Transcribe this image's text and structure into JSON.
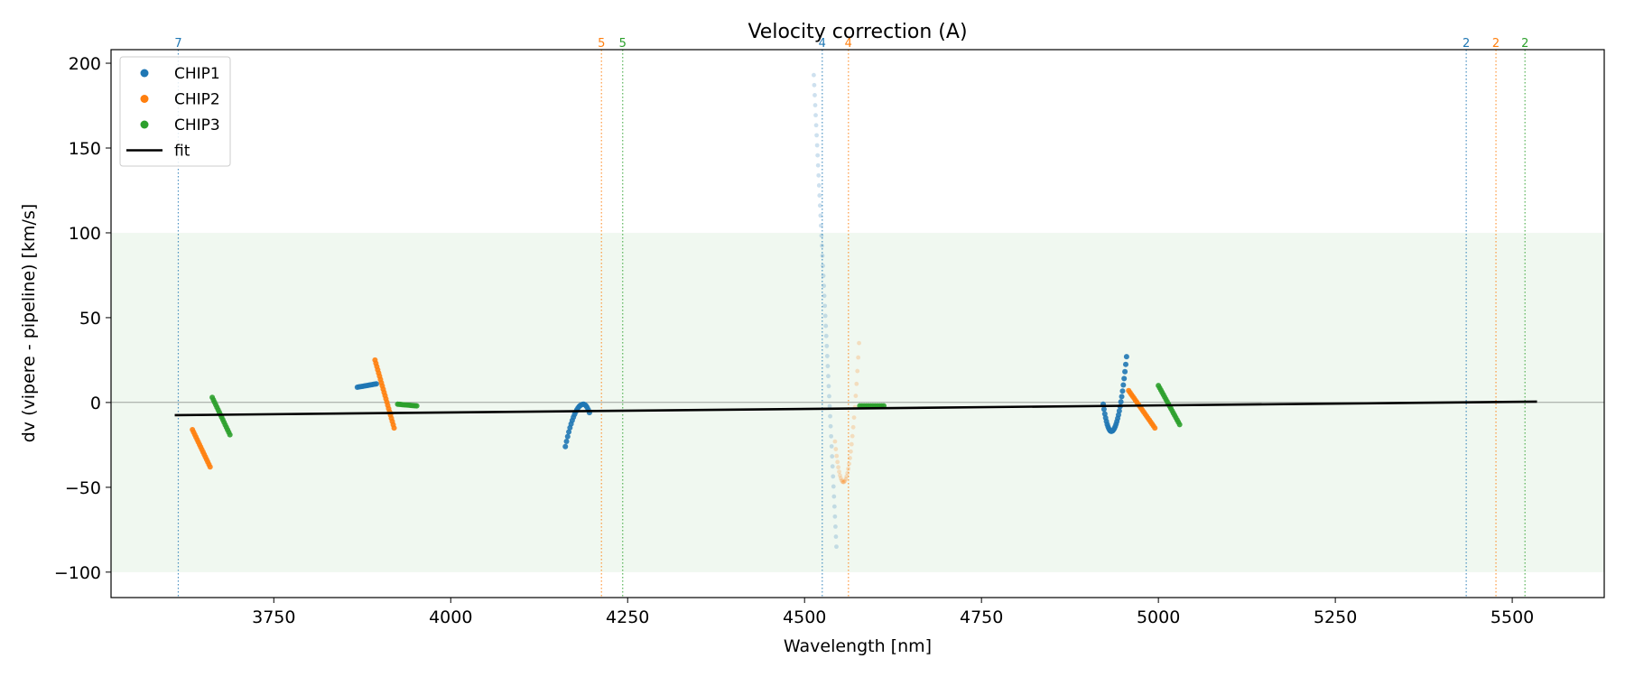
{
  "chart_data": {
    "type": "scatter",
    "title": "Velocity correction (A)",
    "xlabel": "Wavelength [nm]",
    "ylabel": "dv (vipere - pipeline) [km/s]",
    "xlim": [
      3520,
      5630
    ],
    "ylim": [
      -115,
      208
    ],
    "xticks": [
      3750,
      4000,
      4250,
      4500,
      4750,
      5000,
      5250,
      5500
    ],
    "yticks": [
      -100,
      -50,
      0,
      50,
      100,
      150,
      200
    ],
    "ytick_labels": [
      "−100",
      "−50",
      "0",
      "50",
      "100",
      "150",
      "200"
    ],
    "tolerance_band": [
      -100,
      100
    ],
    "zero_line": 0,
    "grid": false,
    "legend_position": "upper-left",
    "colors": {
      "CHIP1": "#1f77b4",
      "CHIP2": "#ff7f0e",
      "CHIP3": "#2ca02c",
      "fit": "#000000",
      "band": "#2ca02c"
    },
    "legend": [
      {
        "label": "CHIP1",
        "kind": "marker",
        "color": "#1f77b4"
      },
      {
        "label": "CHIP2",
        "kind": "marker",
        "color": "#ff7f0e"
      },
      {
        "label": "CHIP3",
        "kind": "marker",
        "color": "#2ca02c"
      },
      {
        "label": "fit",
        "kind": "line",
        "color": "#000000"
      }
    ],
    "fit_line": {
      "x": [
        3610,
        5535
      ],
      "y": [
        -7.5,
        0.5
      ]
    },
    "order_markers": [
      {
        "x": 3615,
        "label": "7",
        "chip": "CHIP1"
      },
      {
        "x": 4213,
        "label": "5",
        "chip": "CHIP2"
      },
      {
        "x": 4243,
        "label": "5",
        "chip": "CHIP3"
      },
      {
        "x": 4525,
        "label": "4",
        "chip": "CHIP1"
      },
      {
        "x": 4562,
        "label": "4",
        "chip": "CHIP2"
      },
      {
        "x": 5435,
        "label": "2",
        "chip": "CHIP1"
      },
      {
        "x": 5477,
        "label": "2",
        "chip": "CHIP2"
      },
      {
        "x": 5518,
        "label": "2",
        "chip": "CHIP3"
      }
    ],
    "series": [
      {
        "name": "CHIP1",
        "segments": [
          {
            "shape": "flat",
            "x0": 3868,
            "x1": 3895,
            "y0": 9,
            "y1": 11,
            "n": 14,
            "faint": false
          },
          {
            "shape": "arc",
            "x0": 4162,
            "x1": 4196,
            "y0": -26,
            "ym": -1,
            "y1": -6,
            "n": 22,
            "faint": false
          },
          {
            "shape": "linear",
            "x0": 4513,
            "x1": 4545,
            "y0": 193,
            "y1": -85,
            "n": 48,
            "faint": true
          },
          {
            "shape": "vshape",
            "x0": 4922,
            "x1": 4955,
            "y0": -1,
            "ym": -17,
            "y1": 27,
            "n": 30,
            "faint": false
          }
        ]
      },
      {
        "name": "CHIP2",
        "segments": [
          {
            "shape": "linear",
            "x0": 3635,
            "x1": 3660,
            "y0": -16,
            "y1": -38,
            "n": 16,
            "faint": false
          },
          {
            "shape": "linear",
            "x0": 3893,
            "x1": 3920,
            "y0": 25,
            "y1": -15,
            "n": 22,
            "faint": false
          },
          {
            "shape": "vshape",
            "x0": 4543,
            "x1": 4577,
            "y0": -23,
            "ym": -47,
            "y1": 35,
            "n": 30,
            "faint": true
          },
          {
            "shape": "linear",
            "x0": 4958,
            "x1": 4995,
            "y0": 7,
            "y1": -15,
            "n": 20,
            "faint": false
          }
        ]
      },
      {
        "name": "CHIP3",
        "segments": [
          {
            "shape": "linear",
            "x0": 3663,
            "x1": 3688,
            "y0": 3,
            "y1": -19,
            "n": 16,
            "faint": false
          },
          {
            "shape": "flat",
            "x0": 3925,
            "x1": 3952,
            "y0": -1,
            "y1": -2,
            "n": 14,
            "faint": false
          },
          {
            "shape": "flat",
            "x0": 4578,
            "x1": 4612,
            "y0": -2,
            "y1": -2,
            "n": 12,
            "faint": false
          },
          {
            "shape": "linear",
            "x0": 5000,
            "x1": 5030,
            "y0": 10,
            "y1": -13,
            "n": 18,
            "faint": false
          }
        ]
      }
    ]
  }
}
